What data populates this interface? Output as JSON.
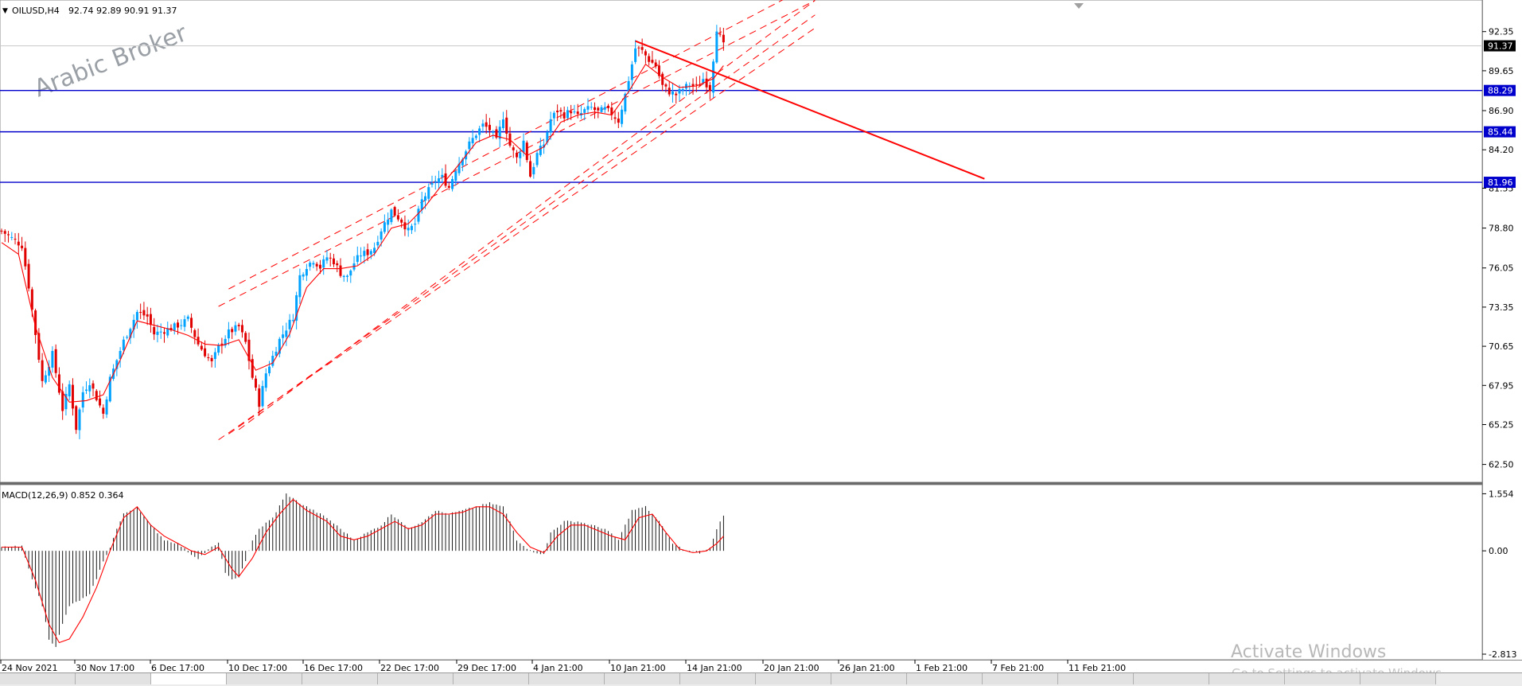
{
  "header": {
    "symbol_label": "OILUSD,H4",
    "ohlc_text": "92.74 92.89 90.91 91.37"
  },
  "watermark": "Arabic Broker",
  "activate_windows": {
    "line1": "Activate Windows",
    "line2": "Go to Settings to activate Windows."
  },
  "tabs": [
    "",
    "",
    "",
    "",
    "",
    "",
    "",
    "",
    "",
    "",
    "",
    "",
    "",
    "",
    "",
    "",
    "",
    "",
    ""
  ],
  "colors": {
    "bull": "#00a2ff",
    "bear": "#e00000",
    "ma": "#ff0000",
    "hline": "#0000cc",
    "channel": "#ff0000",
    "histogram": "#000000",
    "signal": "#ff0000"
  },
  "chart_data": [
    {
      "type": "candlestick",
      "symbol": "OILUSD",
      "timeframe": "H4",
      "ylim": [
        61.6,
        94.2
      ],
      "y_ticks": [
        "92.35",
        "89.65",
        "86.90",
        "84.20",
        "81.55",
        "78.80",
        "76.05",
        "73.35",
        "70.65",
        "67.95",
        "65.25",
        "62.50"
      ],
      "x_ticks": [
        "24 Nov 2021",
        "30 Nov 17:00",
        "6 Dec 17:00",
        "10 Dec 17:00",
        "16 Dec 17:00",
        "22 Dec 17:00",
        "29 Dec 17:00",
        "4 Jan 21:00",
        "10 Jan 21:00",
        "14 Jan 21:00",
        "20 Jan 21:00",
        "26 Jan 21:00",
        "1 Feb 21:00",
        "7 Feb 21:00",
        "11 Feb 21:00"
      ],
      "price_labels": [
        {
          "value": 91.37,
          "text": "91.37",
          "kind": "current"
        },
        {
          "value": 88.29,
          "text": "88.29",
          "kind": "level"
        },
        {
          "value": 85.44,
          "text": "85.44",
          "kind": "level"
        },
        {
          "value": 81.96,
          "text": "81.96",
          "kind": "level"
        }
      ],
      "horizontal_levels": [
        88.29,
        85.44,
        81.96
      ],
      "close_path": [
        [
          0,
          78.6
        ],
        [
          6,
          77.6
        ],
        [
          8,
          74.8
        ],
        [
          12,
          68.2
        ],
        [
          15,
          70.1
        ],
        [
          18,
          66.3
        ],
        [
          20,
          68.0
        ],
        [
          22,
          65.0
        ],
        [
          24,
          67.5
        ],
        [
          26,
          68.2
        ],
        [
          28,
          67.1
        ],
        [
          30,
          66.0
        ],
        [
          32,
          68.4
        ],
        [
          36,
          71.0
        ],
        [
          40,
          73.0
        ],
        [
          43,
          72.7
        ],
        [
          45,
          71.5
        ],
        [
          50,
          71.9
        ],
        [
          53,
          72.2
        ],
        [
          55,
          72.5
        ],
        [
          58,
          70.8
        ],
        [
          62,
          69.5
        ],
        [
          64,
          70.6
        ],
        [
          67,
          71.6
        ],
        [
          70,
          72.0
        ],
        [
          72,
          70.9
        ],
        [
          74,
          68.5
        ],
        [
          76,
          66.7
        ],
        [
          78,
          68.8
        ],
        [
          82,
          71.1
        ],
        [
          86,
          72.7
        ],
        [
          88,
          75.5
        ],
        [
          90,
          76.2
        ],
        [
          92,
          76.6
        ],
        [
          94,
          76.1
        ],
        [
          96,
          76.8
        ],
        [
          98,
          76.5
        ],
        [
          100,
          75.7
        ],
        [
          102,
          75.4
        ],
        [
          104,
          76.4
        ],
        [
          106,
          77.0
        ],
        [
          108,
          77.1
        ],
        [
          110,
          77.5
        ],
        [
          112,
          78.7
        ],
        [
          115,
          80.0
        ],
        [
          118,
          79.3
        ],
        [
          120,
          78.6
        ],
        [
          122,
          79.1
        ],
        [
          124,
          80.7
        ],
        [
          128,
          82.1
        ],
        [
          130,
          82.3
        ],
        [
          132,
          81.6
        ],
        [
          134,
          82.9
        ],
        [
          138,
          84.6
        ],
        [
          140,
          85.3
        ],
        [
          142,
          85.9
        ],
        [
          144,
          85.6
        ],
        [
          146,
          84.8
        ],
        [
          148,
          86.5
        ],
        [
          150,
          84.5
        ],
        [
          152,
          83.6
        ],
        [
          154,
          84.8
        ],
        [
          156,
          82.4
        ],
        [
          158,
          83.9
        ],
        [
          160,
          84.6
        ],
        [
          162,
          86.3
        ],
        [
          164,
          86.9
        ],
        [
          166,
          86.6
        ],
        [
          168,
          86.9
        ],
        [
          170,
          86.5
        ],
        [
          172,
          86.9
        ],
        [
          174,
          87.1
        ],
        [
          176,
          86.8
        ],
        [
          178,
          87.0
        ],
        [
          180,
          86.7
        ],
        [
          182,
          86.2
        ],
        [
          184,
          88.0
        ],
        [
          186,
          90.1
        ],
        [
          187,
          91.2
        ],
        [
          189,
          91.0
        ],
        [
          191,
          90.4
        ],
        [
          193,
          90.0
        ],
        [
          195,
          88.6
        ],
        [
          197,
          88.2
        ],
        [
          199,
          88.0
        ],
        [
          201,
          88.4
        ],
        [
          203,
          88.7
        ],
        [
          205,
          88.5
        ],
        [
          207,
          89.1
        ],
        [
          209,
          88.4
        ],
        [
          211,
          92.6
        ],
        [
          213,
          91.37
        ]
      ],
      "moving_average": [
        [
          0,
          77.8
        ],
        [
          5,
          77.0
        ],
        [
          10,
          72.0
        ],
        [
          15,
          68.5
        ],
        [
          20,
          66.8
        ],
        [
          25,
          66.9
        ],
        [
          30,
          67.3
        ],
        [
          35,
          69.7
        ],
        [
          40,
          72.4
        ],
        [
          45,
          72.1
        ],
        [
          50,
          71.8
        ],
        [
          55,
          71.4
        ],
        [
          60,
          70.8
        ],
        [
          65,
          70.7
        ],
        [
          70,
          71.1
        ],
        [
          75,
          69.0
        ],
        [
          80,
          69.5
        ],
        [
          85,
          71.5
        ],
        [
          90,
          74.7
        ],
        [
          95,
          76.0
        ],
        [
          100,
          76.0
        ],
        [
          105,
          76.2
        ],
        [
          110,
          77.0
        ],
        [
          115,
          78.8
        ],
        [
          120,
          79.1
        ],
        [
          125,
          80.3
        ],
        [
          130,
          81.8
        ],
        [
          135,
          83.2
        ],
        [
          140,
          84.7
        ],
        [
          145,
          85.2
        ],
        [
          150,
          84.9
        ],
        [
          155,
          83.8
        ],
        [
          160,
          84.4
        ],
        [
          165,
          86.1
        ],
        [
          170,
          86.6
        ],
        [
          175,
          86.8
        ],
        [
          180,
          86.6
        ],
        [
          185,
          88.2
        ],
        [
          190,
          90.1
        ],
        [
          195,
          89.2
        ],
        [
          200,
          88.5
        ],
        [
          205,
          88.6
        ],
        [
          210,
          89.1
        ],
        [
          213,
          90.0
        ]
      ],
      "trend_channel": {
        "upper_a": [
          [
            64,
            73.4
          ],
          [
            240,
            94.5
          ]
        ],
        "upper_b": [
          [
            67,
            74.6
          ],
          [
            240,
            95.7
          ]
        ],
        "lower_a": [
          [
            64,
            64.2
          ],
          [
            240,
            92.6
          ]
        ],
        "lower_b": [
          [
            67,
            64.6
          ],
          [
            240,
            93.5
          ]
        ],
        "lower_c": [
          [
            70,
            64.9
          ],
          [
            240,
            94.5
          ]
        ]
      },
      "descending_trendline": [
        [
          187,
          91.7
        ],
        [
          290,
          82.2
        ]
      ]
    },
    {
      "type": "macd_histogram",
      "title": "MACD(12,26,9) 0.852 0.364",
      "ylim": [
        -2.9,
        1.65
      ],
      "y_ticks": [
        "1.554",
        "0.00",
        "-2.813"
      ],
      "histogram_path": [
        [
          0,
          0.1
        ],
        [
          6,
          0.12
        ],
        [
          8,
          -0.5
        ],
        [
          12,
          -1.5
        ],
        [
          14,
          -2.4
        ],
        [
          16,
          -2.6
        ],
        [
          18,
          -2.0
        ],
        [
          20,
          -1.5
        ],
        [
          26,
          -1.2
        ],
        [
          30,
          -0.3
        ],
        [
          32,
          0.1
        ],
        [
          34,
          0.6
        ],
        [
          36,
          1.0
        ],
        [
          40,
          1.2
        ],
        [
          44,
          0.7
        ],
        [
          48,
          0.3
        ],
        [
          52,
          0.2
        ],
        [
          56,
          -0.1
        ],
        [
          58,
          -0.2
        ],
        [
          62,
          0.1
        ],
        [
          64,
          0.2
        ],
        [
          66,
          -0.6
        ],
        [
          68,
          -0.8
        ],
        [
          70,
          -0.7
        ],
        [
          72,
          -0.3
        ],
        [
          74,
          0.3
        ],
        [
          76,
          0.6
        ],
        [
          80,
          0.9
        ],
        [
          84,
          1.55
        ],
        [
          88,
          1.3
        ],
        [
          92,
          1.1
        ],
        [
          96,
          0.9
        ],
        [
          100,
          0.6
        ],
        [
          104,
          0.3
        ],
        [
          108,
          0.5
        ],
        [
          112,
          0.7
        ],
        [
          115,
          1.0
        ],
        [
          118,
          0.8
        ],
        [
          120,
          0.6
        ],
        [
          124,
          0.8
        ],
        [
          128,
          1.1
        ],
        [
          132,
          1.0
        ],
        [
          136,
          1.1
        ],
        [
          140,
          1.2
        ],
        [
          144,
          1.3
        ],
        [
          148,
          1.2
        ],
        [
          150,
          0.8
        ],
        [
          152,
          0.3
        ],
        [
          156,
          0.0
        ],
        [
          160,
          -0.1
        ],
        [
          162,
          0.5
        ],
        [
          166,
          0.8
        ],
        [
          170,
          0.8
        ],
        [
          174,
          0.7
        ],
        [
          178,
          0.6
        ],
        [
          182,
          0.3
        ],
        [
          186,
          1.1
        ],
        [
          190,
          1.2
        ],
        [
          194,
          0.8
        ],
        [
          198,
          0.2
        ],
        [
          202,
          0.0
        ],
        [
          206,
          -0.05
        ],
        [
          209,
          0.1
        ],
        [
          211,
          0.6
        ],
        [
          213,
          0.95
        ]
      ],
      "signal_path": [
        [
          0,
          0.1
        ],
        [
          6,
          0.1
        ],
        [
          10,
          -0.8
        ],
        [
          14,
          -2.0
        ],
        [
          17,
          -2.5
        ],
        [
          20,
          -2.4
        ],
        [
          24,
          -1.8
        ],
        [
          28,
          -1.0
        ],
        [
          32,
          0.0
        ],
        [
          36,
          0.9
        ],
        [
          40,
          1.2
        ],
        [
          44,
          0.7
        ],
        [
          48,
          0.4
        ],
        [
          52,
          0.2
        ],
        [
          56,
          0.0
        ],
        [
          60,
          -0.1
        ],
        [
          64,
          0.1
        ],
        [
          68,
          -0.5
        ],
        [
          70,
          -0.7
        ],
        [
          74,
          -0.2
        ],
        [
          78,
          0.5
        ],
        [
          82,
          1.0
        ],
        [
          86,
          1.4
        ],
        [
          90,
          1.1
        ],
        [
          96,
          0.8
        ],
        [
          100,
          0.4
        ],
        [
          104,
          0.3
        ],
        [
          108,
          0.4
        ],
        [
          112,
          0.6
        ],
        [
          116,
          0.8
        ],
        [
          120,
          0.6
        ],
        [
          124,
          0.7
        ],
        [
          128,
          1.0
        ],
        [
          132,
          1.0
        ],
        [
          136,
          1.05
        ],
        [
          140,
          1.2
        ],
        [
          144,
          1.2
        ],
        [
          148,
          1.0
        ],
        [
          152,
          0.5
        ],
        [
          156,
          0.1
        ],
        [
          160,
          -0.05
        ],
        [
          164,
          0.4
        ],
        [
          168,
          0.7
        ],
        [
          172,
          0.7
        ],
        [
          176,
          0.55
        ],
        [
          180,
          0.4
        ],
        [
          184,
          0.3
        ],
        [
          188,
          0.9
        ],
        [
          192,
          1.0
        ],
        [
          196,
          0.5
        ],
        [
          200,
          0.05
        ],
        [
          204,
          -0.05
        ],
        [
          208,
          0.0
        ],
        [
          211,
          0.2
        ],
        [
          213,
          0.4
        ]
      ]
    }
  ]
}
